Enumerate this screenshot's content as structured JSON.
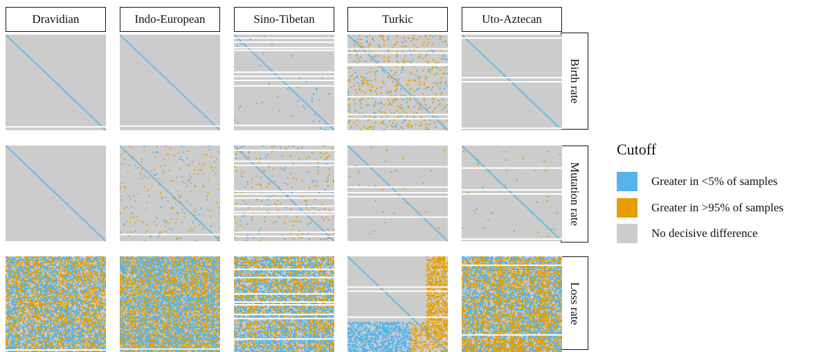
{
  "chart_data": {
    "type": "heatmap",
    "columns": [
      "Dravidian",
      "Indo-European",
      "Sino-Tibetan",
      "Turkic",
      "Uto-Aztecan"
    ],
    "rows": [
      "Birth rate",
      "Mutation rate",
      "Loss rate"
    ],
    "legend": {
      "title": "Cutoff",
      "placement": "right",
      "items": [
        {
          "label": "Greater in <5% of samples",
          "color": "#56b4e9"
        },
        {
          "label": "Greater in >95% of samples",
          "color": "#e69f00"
        },
        {
          "label": "No decisive difference",
          "color": "#cccccc"
        }
      ]
    },
    "colors": {
      "less": "#56b4e9",
      "greater": "#e69f00",
      "none": "#cccccc",
      "missing": "#ffffff"
    }
  }
}
